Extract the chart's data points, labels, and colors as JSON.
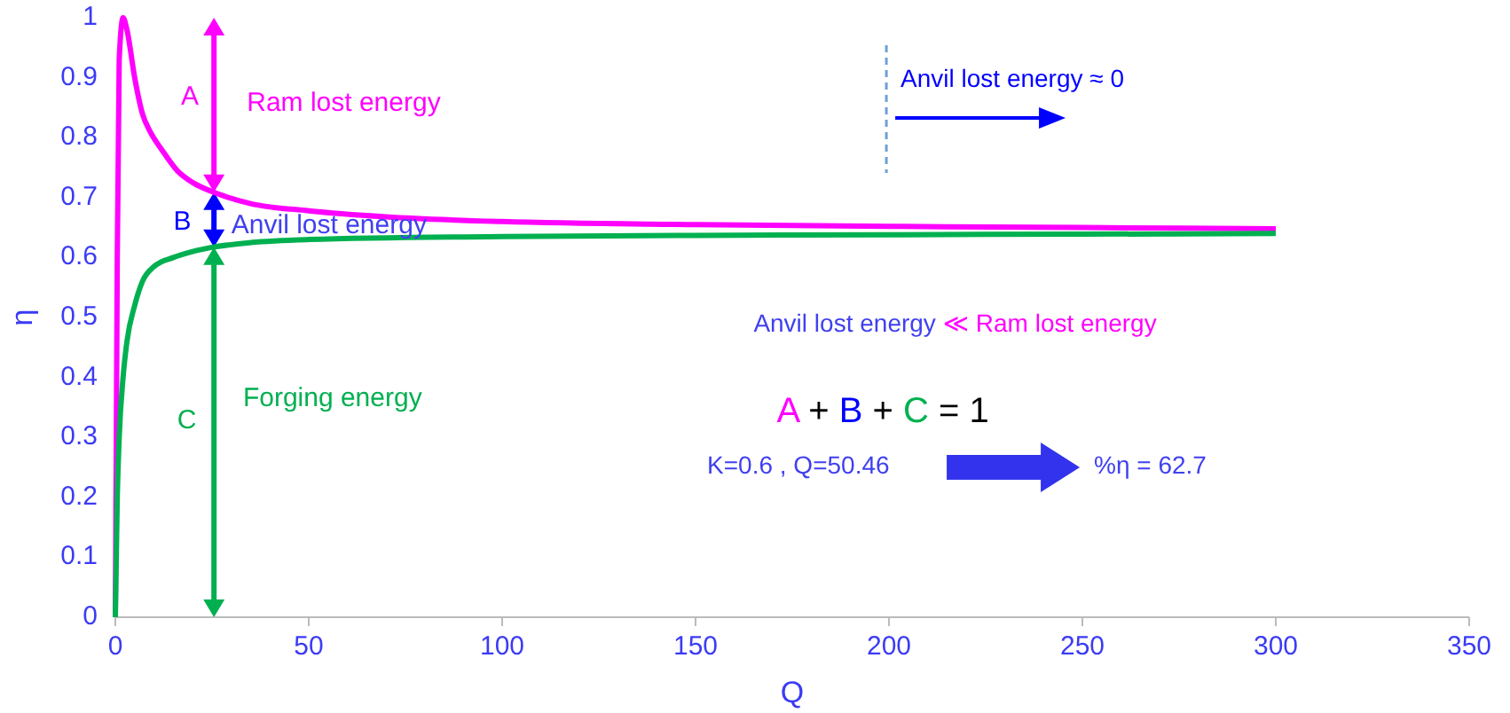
{
  "chart_data": {
    "type": "line",
    "xlabel": "Q",
    "ylabel": "η",
    "xlim": [
      0,
      350
    ],
    "xticks": [
      0,
      50,
      100,
      150,
      200,
      250,
      300,
      350
    ],
    "ylim": [
      0,
      1
    ],
    "yticks": [
      0,
      0.1,
      0.2,
      0.3,
      0.4,
      0.5,
      0.6,
      0.7,
      0.8,
      0.9,
      1
    ],
    "marker": "none",
    "line_style": "solid",
    "series": [
      {
        "color": "#ff00ff",
        "x": [
          0,
          0.5,
          1,
          2,
          3,
          5,
          7,
          9,
          12,
          16,
          20,
          25,
          35,
          50,
          70,
          100,
          150,
          200,
          250,
          300
        ],
        "values": [
          0,
          0.6,
          0.93,
          1.0,
          0.98,
          0.9,
          0.84,
          0.81,
          0.78,
          0.745,
          0.725,
          0.71,
          0.69,
          0.678,
          0.668,
          0.66,
          0.655,
          0.652,
          0.65,
          0.648
        ]
      },
      {
        "color": "#00b050",
        "x": [
          0,
          0.5,
          1,
          2,
          3,
          5,
          7,
          10,
          15,
          20,
          25,
          35,
          50,
          100,
          150,
          200,
          250,
          300
        ],
        "values": [
          0,
          0.2,
          0.3,
          0.4,
          0.46,
          0.52,
          0.56,
          0.585,
          0.6,
          0.61,
          0.617,
          0.625,
          0.63,
          0.635,
          0.637,
          0.638,
          0.639,
          0.64
        ]
      }
    ],
    "annotations": [
      "A",
      "Ram lost energy",
      "B",
      "Anvil lost energy",
      "C",
      "Forging energy",
      "Anvil lost energy ≈ 0",
      "Anvil lost energy ≪ Ram lost energy",
      "A + B + C = 1",
      "K=0.6 , Q=50.46",
      "%η = 62.7"
    ]
  }
}
